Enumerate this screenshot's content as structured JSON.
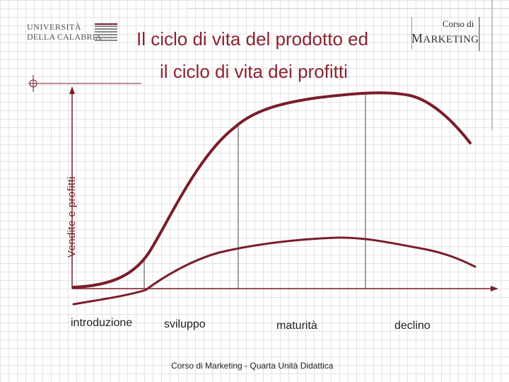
{
  "header": {
    "logo_left": {
      "line1": "UNIVERSITÀ",
      "line2": "DELLA CALABRIA"
    },
    "logo_right": {
      "line1": "Corso di",
      "line2_big": "M",
      "line2_rest": "ARKETING"
    },
    "title_line1": "Il ciclo di vita del prodotto ed",
    "title_line2": "il ciclo di vita dei profitti"
  },
  "diagram": {
    "y_axis_label": "Vendite e profitti",
    "stages": [
      {
        "label": "introduzione"
      },
      {
        "label": "sviluppo"
      },
      {
        "label": "maturità"
      },
      {
        "label": "declino"
      }
    ],
    "colors": {
      "curve": "#7a1d2a",
      "axis": "#7a1d2a",
      "divider": "#555555"
    }
  },
  "footer": {
    "text": "Corso di Marketing - Quarta Unità Didattica"
  }
}
